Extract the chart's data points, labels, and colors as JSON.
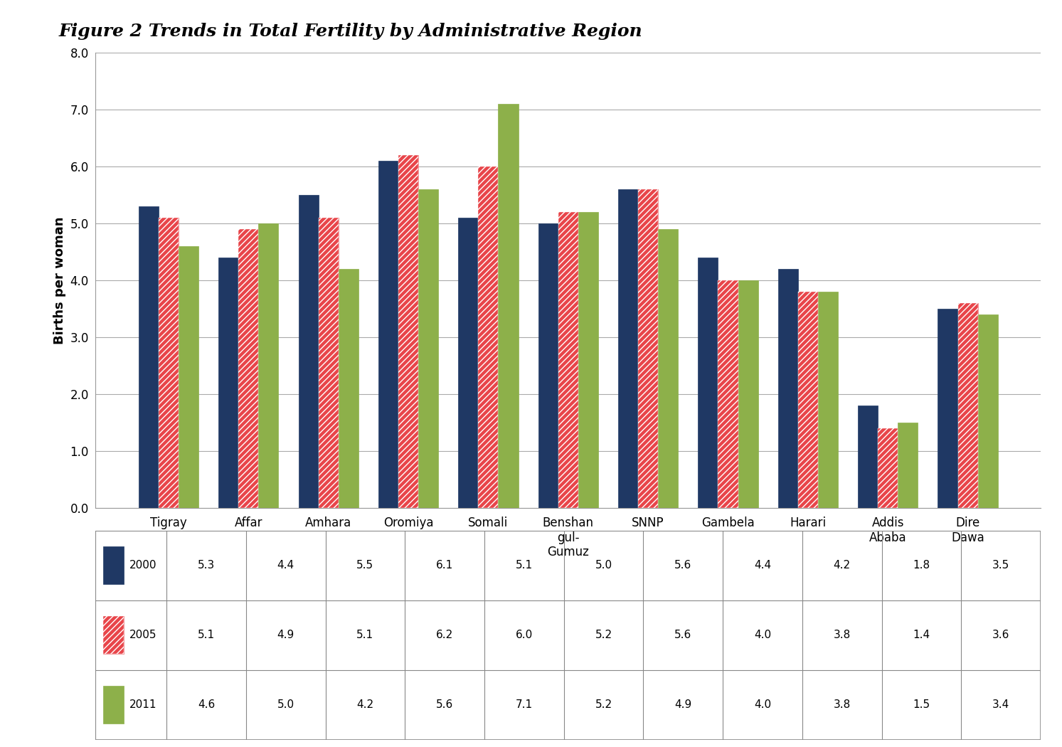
{
  "title": "Figure 2 Trends in Total Fertility by Administrative Region",
  "ylabel": "Births per woman",
  "categories_display": [
    "Tigray",
    "Affar",
    "Amhara",
    "Oromiya",
    "Somali",
    "Benshan\ngul-\nGumuz",
    "SNNP",
    "Gambela",
    "Harari",
    "Addis\nAbaba",
    "Dire\nDawa"
  ],
  "series": {
    "2000": [
      5.3,
      4.4,
      5.5,
      6.1,
      5.1,
      5.0,
      5.6,
      4.4,
      4.2,
      1.8,
      3.5
    ],
    "2005": [
      5.1,
      4.9,
      5.1,
      6.2,
      6.0,
      5.2,
      5.6,
      4.0,
      3.8,
      1.4,
      3.6
    ],
    "2011": [
      4.6,
      5.0,
      4.2,
      5.6,
      7.1,
      5.2,
      4.9,
      4.0,
      3.8,
      1.5,
      3.4
    ]
  },
  "colors": {
    "2000": "#1F3864",
    "2005": "#E8454A",
    "2011": "#8DB04A"
  },
  "ylim": [
    0,
    8.0
  ],
  "yticks": [
    0.0,
    1.0,
    2.0,
    3.0,
    4.0,
    5.0,
    6.0,
    7.0,
    8.0
  ],
  "bar_width": 0.25,
  "background_color": "#FFFFFF",
  "plot_background": "#FFFFFF",
  "grid_color": "#AAAAAA",
  "title_fontsize": 18,
  "axis_label_fontsize": 13,
  "tick_fontsize": 12,
  "table_fontsize": 11
}
